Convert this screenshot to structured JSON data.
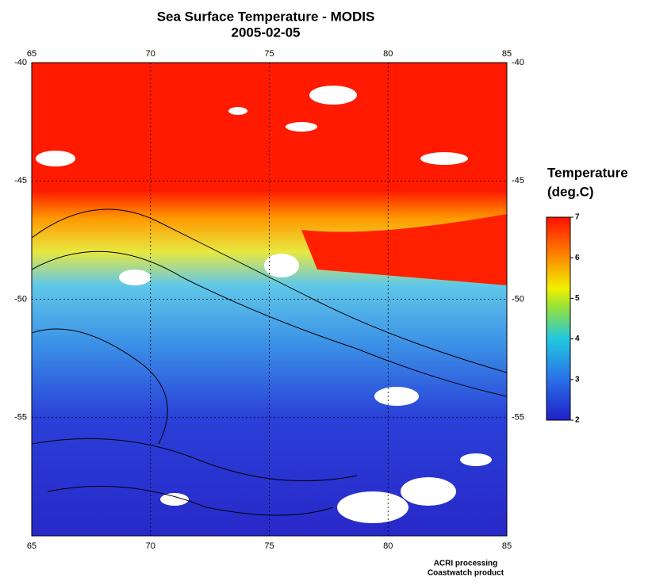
{
  "title": "Sea Surface Temperature - MODIS",
  "subtitle": "2005-02-05",
  "map": {
    "xlim": [
      65,
      85
    ],
    "xticks": [
      65,
      70,
      75,
      80,
      85
    ],
    "ylim": [
      -60,
      -40
    ],
    "yticks": [
      -40,
      -45,
      -50,
      -55
    ],
    "grid": true
  },
  "colorbar": {
    "title": "Temperature",
    "unit": "(deg.C)",
    "lim": [
      2,
      7
    ],
    "ticks": [
      2,
      3,
      4,
      5,
      6,
      7
    ]
  },
  "footer": [
    "ACRI processing",
    "Coastwatch product"
  ]
}
